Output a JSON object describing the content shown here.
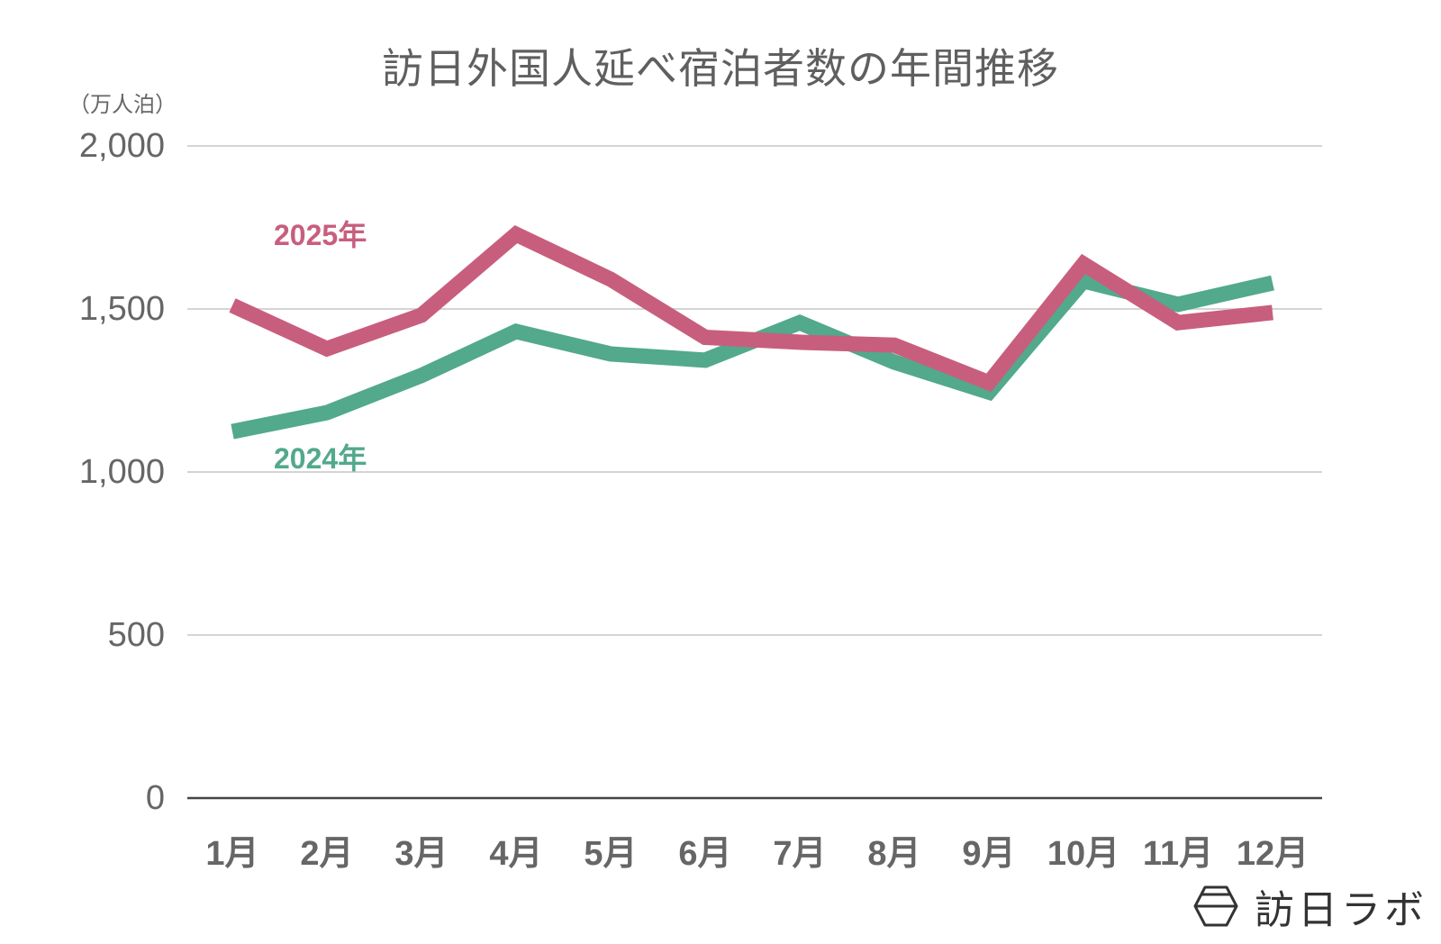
{
  "title": "訪日外国人延べ宿泊者数の年間推移",
  "unit_label": "（万人泊）",
  "logo": {
    "text": "訪日ラボ",
    "icon": "hexagon-logo-icon"
  },
  "colors": {
    "series_2025": "#C85E7E",
    "series_2024": "#52A98B",
    "grid": "#d4d4d4",
    "axis": "#444444",
    "text": "#666666"
  },
  "y_ticks": [
    {
      "value": 2000,
      "label": "2,000"
    },
    {
      "value": 1500,
      "label": "1,500"
    },
    {
      "value": 1000,
      "label": "1,000"
    },
    {
      "value": 500,
      "label": "500"
    },
    {
      "value": 0,
      "label": "0"
    }
  ],
  "x_ticks": [
    "1月",
    "2月",
    "3月",
    "4月",
    "5月",
    "6月",
    "7月",
    "8月",
    "9月",
    "10月",
    "11月",
    "12月"
  ],
  "series_labels": {
    "s2025": "2025年",
    "s2024": "2024年"
  },
  "chart_data": {
    "type": "line",
    "title": "訪日外国人延べ宿泊者数の年間推移",
    "xlabel": "",
    "ylabel": "（万人泊）",
    "ylim": [
      0,
      2000
    ],
    "yticks": [
      0,
      500,
      1000,
      1500,
      2000
    ],
    "grid": true,
    "legend_position": "inline labels",
    "categories": [
      "1月",
      "2月",
      "3月",
      "4月",
      "5月",
      "6月",
      "7月",
      "8月",
      "9月",
      "10月",
      "11月",
      "12月"
    ],
    "series": [
      {
        "name": "2025年",
        "color": "#C85E7E",
        "values": [
          1511,
          1378,
          1481,
          1729,
          1591,
          1413,
          1398,
          1389,
          1274,
          1638,
          1458,
          1489
        ]
      },
      {
        "name": "2024年",
        "color": "#52A98B",
        "values": [
          1124,
          1182,
          1296,
          1431,
          1362,
          1343,
          1458,
          1337,
          1245,
          1586,
          1514,
          1580
        ]
      }
    ]
  }
}
